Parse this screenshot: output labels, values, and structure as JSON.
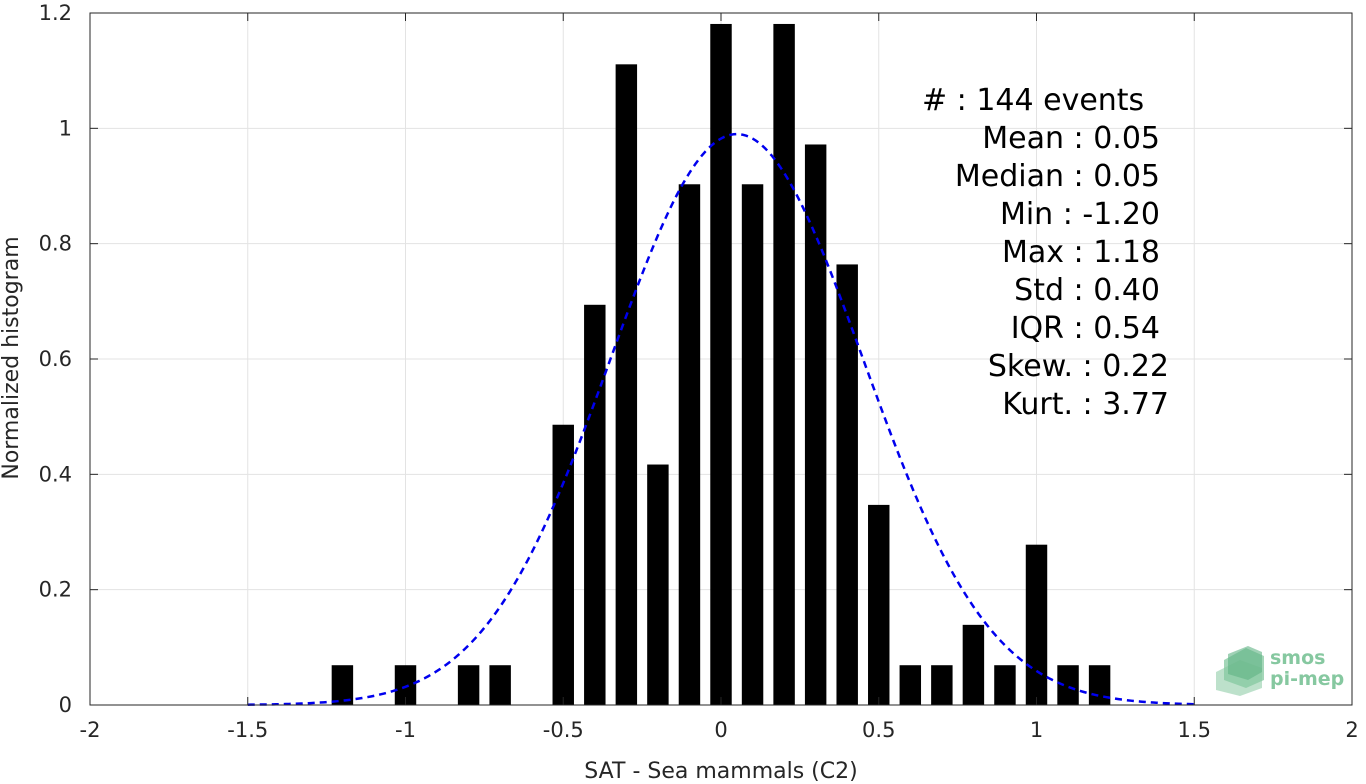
{
  "chart_data": {
    "type": "bar",
    "xlabel": "SAT - Sea mammals (C2)",
    "ylabel": "Normalized histogram",
    "xlim": [
      -2,
      2
    ],
    "ylim": [
      0,
      1.2
    ],
    "x_ticks": [
      -2,
      -1.5,
      -1,
      -0.5,
      0,
      0.5,
      1,
      1.5,
      2
    ],
    "y_ticks": [
      0,
      0.2,
      0.4,
      0.6,
      0.8,
      1,
      1.2
    ],
    "x_tick_labels": [
      "-2",
      "-1.5",
      "-1",
      "-0.5",
      "0",
      "0.5",
      "1",
      "1.5",
      "2"
    ],
    "y_tick_labels": [
      "0",
      "0.2",
      "0.4",
      "0.6",
      "0.8",
      "1",
      "1.2"
    ],
    "grid": true,
    "bar_color": "#000000",
    "bin_width": 0.1,
    "bars": [
      {
        "x": -1.2,
        "y": 0.069
      },
      {
        "x": -1.0,
        "y": 0.069
      },
      {
        "x": -0.8,
        "y": 0.069
      },
      {
        "x": -0.7,
        "y": 0.069
      },
      {
        "x": -0.5,
        "y": 0.486
      },
      {
        "x": -0.4,
        "y": 0.694
      },
      {
        "x": -0.3,
        "y": 1.111
      },
      {
        "x": -0.2,
        "y": 0.417
      },
      {
        "x": -0.1,
        "y": 0.903
      },
      {
        "x": 0.0,
        "y": 1.181
      },
      {
        "x": 0.1,
        "y": 0.903
      },
      {
        "x": 0.2,
        "y": 1.181
      },
      {
        "x": 0.3,
        "y": 0.972
      },
      {
        "x": 0.4,
        "y": 0.764
      },
      {
        "x": 0.5,
        "y": 0.347
      },
      {
        "x": 0.6,
        "y": 0.069
      },
      {
        "x": 0.7,
        "y": 0.069
      },
      {
        "x": 0.8,
        "y": 0.139
      },
      {
        "x": 0.9,
        "y": 0.069
      },
      {
        "x": 1.0,
        "y": 0.278
      },
      {
        "x": 1.1,
        "y": 0.069
      },
      {
        "x": 1.2,
        "y": 0.069
      }
    ],
    "fit_curve": {
      "style": "dashed",
      "color": "#0000ee",
      "x_range": [
        -1.5,
        1.5
      ],
      "peak_value": 0.99,
      "peak_x": 0.05,
      "std": 0.4
    },
    "stats": {
      "count": "#  : 144 events",
      "mean": "Mean : 0.05",
      "median": "Median : 0.05",
      "min": "Min : -1.20",
      "max": "Max : 1.18",
      "std": "Std : 0.40",
      "iqr": "IQR : 0.54",
      "skew": "Skew. : 0.22",
      "kurt": "Kurt. : 3.77"
    }
  },
  "logo": {
    "line1": "smos",
    "line2": "pi-mep",
    "color": "#86c8a0"
  }
}
